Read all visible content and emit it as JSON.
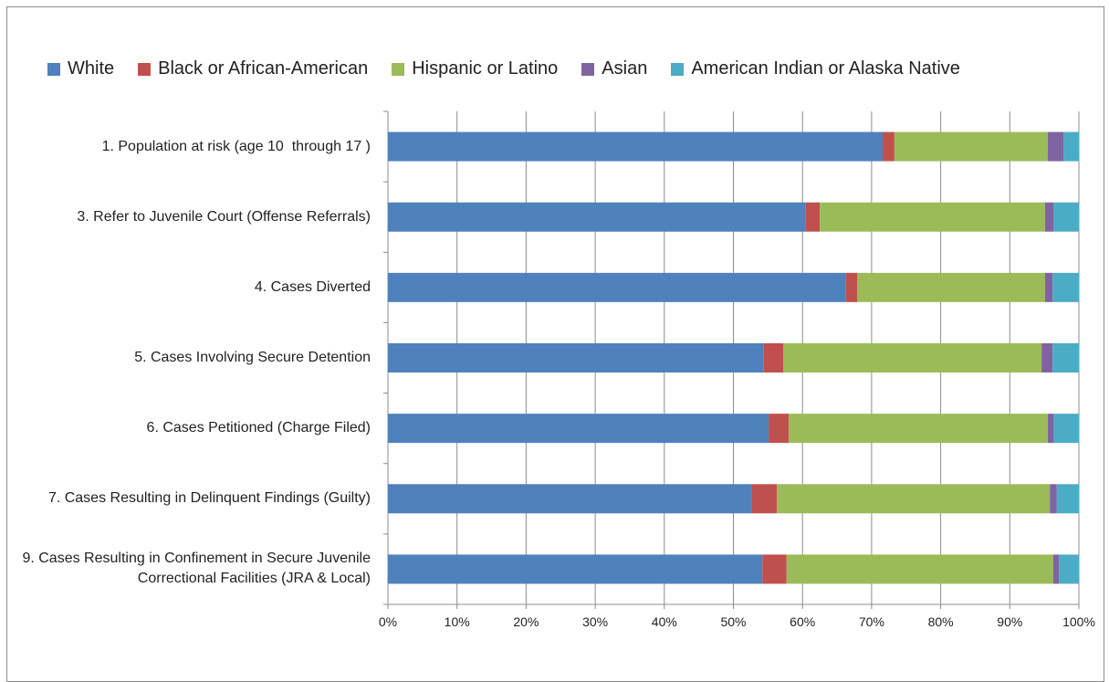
{
  "chart_data": {
    "type": "stacked_barh",
    "categories": [
      "1. Population at risk (age 10  through 17 )",
      "3. Refer to Juvenile Court (Offense Referrals)",
      "4. Cases Diverted",
      "5. Cases Involving Secure Detention",
      "6. Cases Petitioned (Charge Filed)",
      "7. Cases Resulting in Delinquent Findings (Guilty)",
      "9. Cases Resulting in Confinement in Secure Juvenile Correctional Facilities (JRA & Local)"
    ],
    "series": [
      {
        "name": "White",
        "color": "#4f81bd",
        "values": [
          71.6,
          60.4,
          66.3,
          54.4,
          55.1,
          52.7,
          54.2
        ]
      },
      {
        "name": "Black or African-American",
        "color": "#c0504d",
        "values": [
          1.7,
          2.1,
          1.6,
          2.8,
          2.9,
          3.6,
          3.5
        ]
      },
      {
        "name": "Hispanic or Latino",
        "color": "#9bbb59",
        "values": [
          22.2,
          32.6,
          27.2,
          37.4,
          37.5,
          39.5,
          38.6
        ]
      },
      {
        "name": "Asian",
        "color": "#8064a2",
        "values": [
          2.3,
          1.2,
          1.1,
          1.6,
          0.9,
          1.0,
          0.8
        ]
      },
      {
        "name": "American Indian or Alaska Native",
        "color": "#4bacc6",
        "values": [
          2.2,
          3.7,
          3.8,
          3.8,
          3.6,
          3.2,
          2.9
        ]
      }
    ],
    "xlim": [
      0,
      100
    ],
    "xticks": [
      {
        "value": 0,
        "label": "0%"
      },
      {
        "value": 10,
        "label": "10%"
      },
      {
        "value": 20,
        "label": "20%"
      },
      {
        "value": 30,
        "label": "30%"
      },
      {
        "value": 40,
        "label": "40%"
      },
      {
        "value": 50,
        "label": "50%"
      },
      {
        "value": 60,
        "label": "60%"
      },
      {
        "value": 70,
        "label": "70%"
      },
      {
        "value": 80,
        "label": "80%"
      },
      {
        "value": 90,
        "label": "90%"
      },
      {
        "value": 100,
        "label": "100%"
      }
    ],
    "grid": true,
    "legend": "top"
  }
}
